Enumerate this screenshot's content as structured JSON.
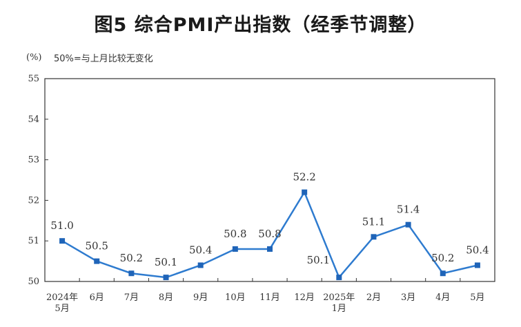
{
  "title": "图5  综合PMI产出指数（经季节调整）",
  "unit": "(%)",
  "note": "50%=与上月比较无变化",
  "chart_data": {
    "type": "line",
    "title": "图5  综合PMI产出指数（经季节调整）",
    "ylabel": "(%)",
    "ylim": [
      50,
      55
    ],
    "yticks": [
      "50",
      "51",
      "52",
      "53",
      "54",
      "55"
    ],
    "categories": [
      [
        "2024年",
        "5月"
      ],
      [
        "6月"
      ],
      [
        "7月"
      ],
      [
        "8月"
      ],
      [
        "9月"
      ],
      [
        "10月"
      ],
      [
        "11月"
      ],
      [
        "12月"
      ],
      [
        "2025年",
        "1月"
      ],
      [
        "2月"
      ],
      [
        "3月"
      ],
      [
        "4月"
      ],
      [
        "5月"
      ]
    ],
    "values": [
      51.0,
      50.5,
      50.2,
      50.1,
      50.4,
      50.8,
      50.8,
      52.2,
      50.1,
      51.1,
      51.4,
      50.2,
      50.4
    ],
    "labels": [
      "51.0",
      "50.5",
      "50.2",
      "50.1",
      "50.4",
      "50.8",
      "50.8",
      "52.2",
      "50.1",
      "51.1",
      "51.4",
      "50.2",
      "50.4"
    ],
    "grid": false,
    "legend": "none",
    "line_color": "#2e7bcf",
    "marker_color": "#1f64b8"
  }
}
